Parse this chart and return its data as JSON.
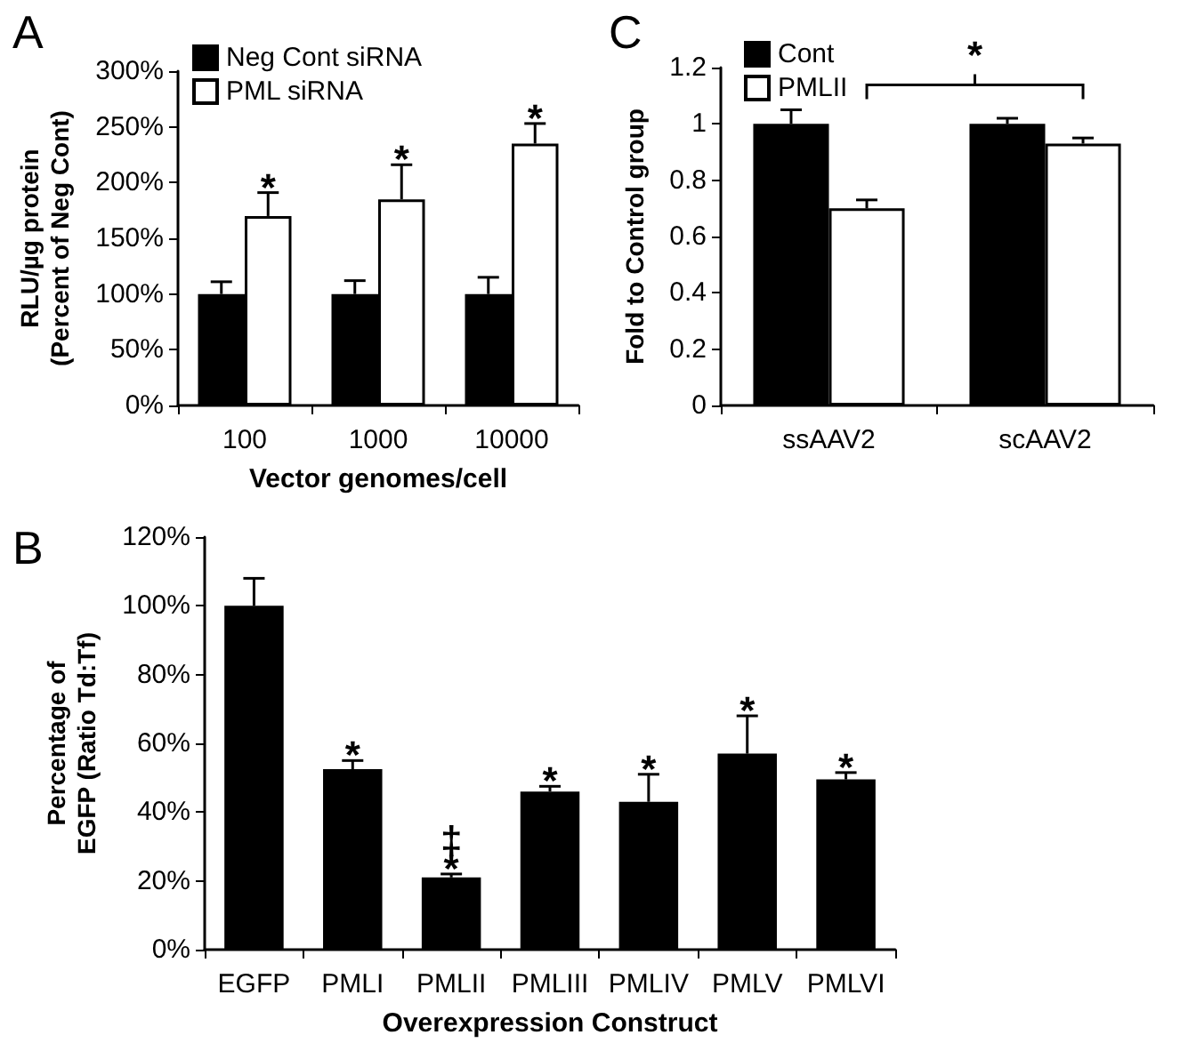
{
  "chart_data": [
    {
      "type": "bar",
      "title": "A",
      "ylabel": "RLU/µg protein (Percent of Neg Cont)",
      "xlabel": "Vector genomes/cell",
      "categories": [
        "100",
        "1000",
        "10000"
      ],
      "series": [
        {
          "name": "Neg Cont siRNA",
          "color": "#000000",
          "values": [
            100,
            100,
            100
          ],
          "errors": [
            11,
            12,
            15
          ]
        },
        {
          "name": "PML siRNA",
          "color": "#ffffff",
          "values": [
            170,
            185,
            235
          ],
          "errors": [
            21,
            31,
            18
          ]
        }
      ],
      "ylim": [
        0,
        300
      ],
      "yticks": [
        {
          "value": 0,
          "label": "0%"
        },
        {
          "value": 50,
          "label": "50%"
        },
        {
          "value": 100,
          "label": "100%"
        },
        {
          "value": 150,
          "label": "150%"
        },
        {
          "value": 200,
          "label": "200%"
        },
        {
          "value": 250,
          "label": "250%"
        },
        {
          "value": 300,
          "label": "300%"
        }
      ],
      "legend": "top left",
      "grid": false,
      "annotations": [
        {
          "text": "*",
          "x": "100",
          "y": 170
        },
        {
          "text": "*",
          "x": "1000",
          "y": 185
        },
        {
          "text": "*",
          "x": "10000",
          "y": 235
        }
      ]
    },
    {
      "type": "bar",
      "title": "C",
      "ylabel": "Fold to Control group",
      "categories": [
        "ssAAV2",
        "scAAV2"
      ],
      "series": [
        {
          "name": "Cont",
          "color": "#000000",
          "values": [
            1.0,
            1.0
          ],
          "errors": [
            0.05,
            0.02
          ]
        },
        {
          "name": "PMLII",
          "color": "#ffffff",
          "values": [
            0.7,
            0.93
          ],
          "errors": [
            0.03,
            0.02
          ]
        }
      ],
      "ylim": [
        0,
        1.2
      ],
      "yticks": [
        0,
        0.2,
        0.4,
        0.6,
        0.8,
        1,
        1.2
      ],
      "legend": "top left",
      "grid": false,
      "annotations": [
        "*"
      ]
    },
    {
      "type": "bar",
      "title": "B",
      "ylabel": "Percentage of EGFP (Ratio Td:Tf)",
      "xlabel": "Overexpression Construct",
      "categories": [
        "EGFP",
        "PMLI",
        "PMLII",
        "PMLIII",
        "PMLIV",
        "PMLV",
        "PMLVI"
      ],
      "series": [
        {
          "color": "#000000",
          "values": [
            100,
            52.5,
            21,
            46,
            43,
            57,
            49.5
          ],
          "errors": [
            8,
            2.5,
            1,
            1.5,
            8,
            11,
            2
          ]
        }
      ],
      "ylim": [
        0,
        120
      ],
      "yticks": [
        {
          "value": 0,
          "label": "0%"
        },
        {
          "value": 20,
          "label": "20%"
        },
        {
          "value": 40,
          "label": "40%"
        },
        {
          "value": 60,
          "label": "60%"
        },
        {
          "value": 80,
          "label": "80%"
        },
        {
          "value": 100,
          "label": "100%"
        },
        {
          "value": 120,
          "label": "120%"
        }
      ],
      "grid": false,
      "annotations": [
        {
          "text": "*",
          "x": "PMLI",
          "y": 52.5
        },
        {
          "text": "*",
          "x": "PMLII",
          "y": 21
        },
        {
          "text": "‡",
          "x": "PMLII",
          "y": 21
        },
        {
          "text": "*",
          "x": "PMLIII",
          "y": 46
        },
        {
          "text": "*",
          "x": "PMLIV",
          "y": 43
        },
        {
          "text": "*",
          "x": "PMLV",
          "y": 57
        },
        {
          "text": "*",
          "x": "PMLVI",
          "y": 49.5
        }
      ]
    }
  ]
}
